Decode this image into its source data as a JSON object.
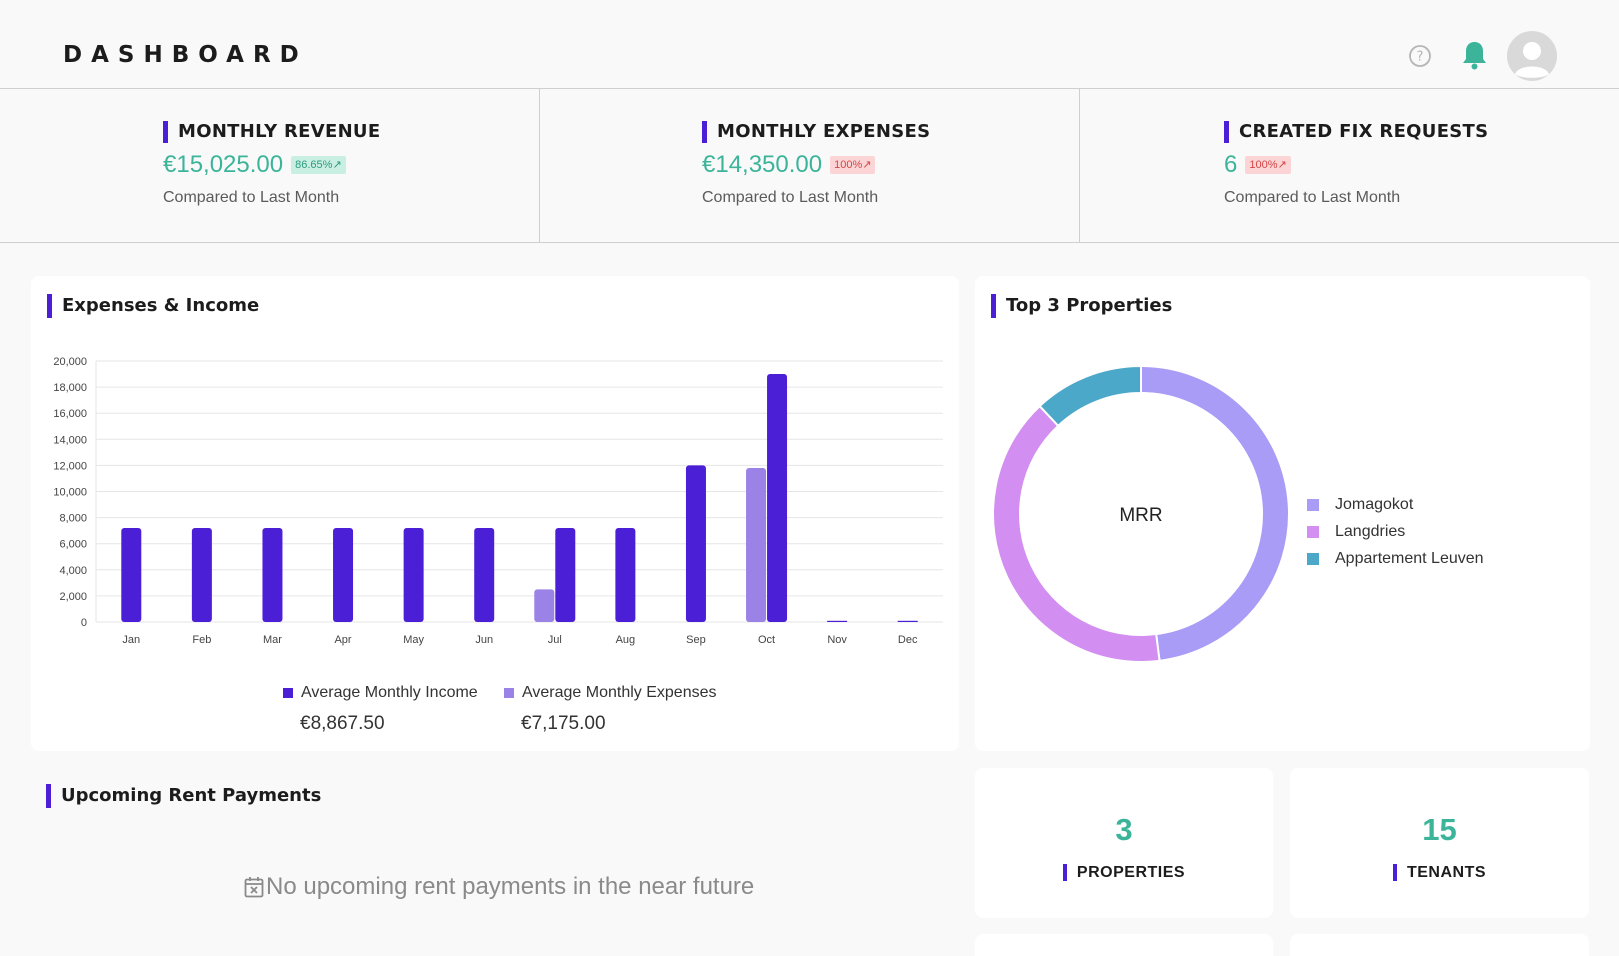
{
  "header": {
    "title": "DASHBOARD"
  },
  "kpis": [
    {
      "title": "MONTHLY REVENUE",
      "value": "€15,025.00",
      "badge": "86.65%",
      "badge_tone": "green",
      "subtitle": "Compared to Last Month"
    },
    {
      "title": "MONTHLY EXPENSES",
      "value": "€14,350.00",
      "badge": "100%",
      "badge_tone": "red",
      "subtitle": "Compared to Last Month"
    },
    {
      "title": "CREATED FIX REQUESTS",
      "value": "6",
      "badge": "100%",
      "badge_tone": "red",
      "subtitle": "Compared to Last Month"
    }
  ],
  "expenses_income": {
    "title": "Expenses & Income",
    "legend": [
      {
        "label": "Average Monthly Income",
        "value": "€8,867.50"
      },
      {
        "label": "Average Monthly Expenses",
        "value": "€7,175.00"
      }
    ]
  },
  "top_properties": {
    "title": "Top 3 Properties",
    "center_label": "MRR"
  },
  "rent": {
    "title": "Upcoming Rent Payments",
    "empty_message": "No upcoming rent payments in the near future"
  },
  "stats": [
    {
      "value": "3",
      "label": "PROPERTIES"
    },
    {
      "value": "15",
      "label": "TENANTS"
    }
  ],
  "colors": {
    "income": "#4b1fd6",
    "expenses": "#9b82e6",
    "accent_green": "#3bb49a",
    "slice_1": "#a99cf7",
    "slice_2": "#d28ef0",
    "slice_3": "#4ca8c9"
  },
  "chart_data": [
    {
      "type": "bar",
      "title": "Expenses & Income",
      "categories": [
        "Jan",
        "Feb",
        "Mar",
        "Apr",
        "May",
        "Jun",
        "Jul",
        "Aug",
        "Sep",
        "Oct",
        "Nov",
        "Dec"
      ],
      "series": [
        {
          "name": "Average Monthly Expenses",
          "values": [
            0,
            0,
            0,
            0,
            0,
            0,
            2500,
            0,
            0,
            11800,
            0,
            0
          ]
        },
        {
          "name": "Average Monthly Income",
          "values": [
            7200,
            7200,
            7200,
            7200,
            7200,
            7200,
            7200,
            7200,
            12000,
            19000,
            0,
            0
          ]
        }
      ],
      "ylim": [
        0,
        20000
      ],
      "yticks": [
        "0",
        "2,000",
        "4,000",
        "6,000",
        "8,000",
        "10,000",
        "12,000",
        "14,000",
        "16,000",
        "18,000",
        "20,000"
      ],
      "grid": true,
      "legend": "bottom"
    },
    {
      "type": "pie",
      "title": "Top 3 Properties",
      "center_label": "MRR",
      "labels": [
        "Jomagokot",
        "Langdries",
        "Appartement Leuven"
      ],
      "values": [
        48,
        40,
        12
      ],
      "legend": "right"
    }
  ]
}
